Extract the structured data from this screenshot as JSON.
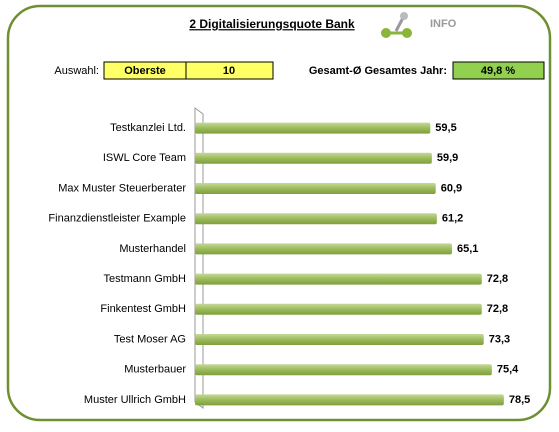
{
  "chart_data": {
    "type": "bar",
    "orientation": "horizontal",
    "title": "2 Digitalisierungsquote Bank",
    "info_label": "INFO",
    "selection_label": "Auswahl:",
    "selection_value": "Oberste",
    "selection_count": "10",
    "average_label": "Gesamt-Ø Gesamtes Jahr:",
    "average_value": "49,8 %",
    "categories": [
      "Testkanzlei Ltd.",
      "ISWL Core Team",
      "Max Muster Steuerberater",
      "Finanzdienstleister Example",
      "Musterhandel",
      "Testmann GmbH",
      "Finkentest GmbH",
      "Test Moser AG",
      "Musterbauer",
      "Muster Ullrich GmbH"
    ],
    "values": [
      59.5,
      59.9,
      60.9,
      61.2,
      65.1,
      72.8,
      72.8,
      73.3,
      75.4,
      78.5
    ],
    "value_labels": [
      "59,5",
      "59,9",
      "60,9",
      "61,2",
      "65,1",
      "72,8",
      "72,8",
      "73,3",
      "75,4",
      "78,5"
    ],
    "color": "#9bbb59",
    "xlim": [
      0,
      85
    ]
  }
}
